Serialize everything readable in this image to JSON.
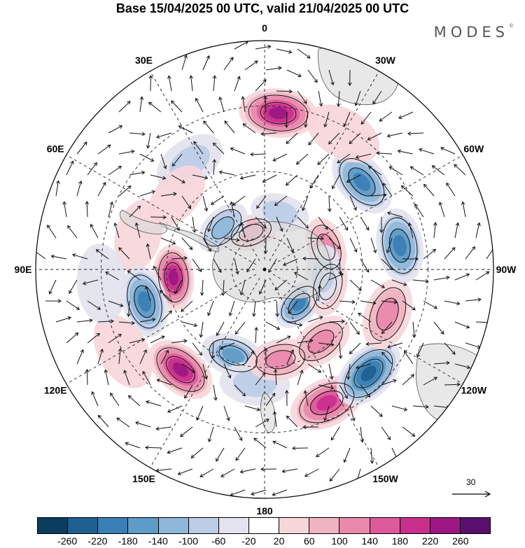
{
  "title": "Base 15/04/2025 00 UTC, valid 21/04/2025 00 UTC",
  "brand": "MODES",
  "brand_mark": "©",
  "map": {
    "projection": "south-polar-stereographic",
    "field": "geopotential-height-anomaly",
    "longitude_labels": [
      {
        "text": "0",
        "lon": 0
      },
      {
        "text": "30E",
        "lon": 30
      },
      {
        "text": "60E",
        "lon": 60
      },
      {
        "text": "90E",
        "lon": 90
      },
      {
        "text": "120E",
        "lon": 120
      },
      {
        "text": "150E",
        "lon": 150
      },
      {
        "text": "180",
        "lon": 180
      },
      {
        "text": "150W",
        "lon": -150
      },
      {
        "text": "120W",
        "lon": -120
      },
      {
        "text": "90W",
        "lon": -90
      },
      {
        "text": "60W",
        "lon": -60
      },
      {
        "text": "30W",
        "lon": -30
      }
    ],
    "anomalies": [
      {
        "lon": -5,
        "lat": -42,
        "value": 240
      },
      {
        "lon": -48,
        "lat": -50,
        "value": -200
      },
      {
        "lon": 35,
        "lat": -50,
        "value": -90
      },
      {
        "lon": 20,
        "lat": -78,
        "value": 110
      },
      {
        "lon": -15,
        "lat": -72,
        "value": -70
      },
      {
        "lon": 50,
        "lat": -55,
        "value": 60
      },
      {
        "lon": 75,
        "lat": -50,
        "value": 60
      },
      {
        "lon": 45,
        "lat": -72,
        "value": -120
      },
      {
        "lon": 95,
        "lat": -62,
        "value": 230
      },
      {
        "lon": 105,
        "lat": -52,
        "value": -200
      },
      {
        "lon": 140,
        "lat": -50,
        "value": 230
      },
      {
        "lon": 160,
        "lat": -62,
        "value": -180
      },
      {
        "lon": 175,
        "lat": -55,
        "value": -80
      },
      {
        "lon": -170,
        "lat": -62,
        "value": 120
      },
      {
        "lon": -155,
        "lat": -45,
        "value": 200
      },
      {
        "lon": -142,
        "lat": -62,
        "value": 110
      },
      {
        "lon": -135,
        "lat": -45,
        "value": -230
      },
      {
        "lon": -135,
        "lat": -75,
        "value": -200
      },
      {
        "lon": -110,
        "lat": -50,
        "value": 130
      },
      {
        "lon": -105,
        "lat": -70,
        "value": 100
      },
      {
        "lon": -80,
        "lat": -48,
        "value": -200
      },
      {
        "lon": -70,
        "lat": -70,
        "value": 110
      },
      {
        "lon": -95,
        "lat": -72,
        "value": -70
      },
      {
        "lon": 120,
        "lat": -40,
        "value": 40
      },
      {
        "lon": 95,
        "lat": -40,
        "value": -50
      },
      {
        "lon": -30,
        "lat": -42,
        "value": 40
      }
    ]
  },
  "colorbar": {
    "colors": [
      "#0b3d5e",
      "#1f5f8f",
      "#3a7fb5",
      "#5e9bc8",
      "#8fb7da",
      "#bccde6",
      "#e3e3ef",
      "#ffffff",
      "#f7d6da",
      "#f0b3c1",
      "#e989ab",
      "#dd5b9b",
      "#c92f8c",
      "#9c1781",
      "#5a0f6e"
    ],
    "labels": [
      "-260",
      "-220",
      "-180",
      "-140",
      "-100",
      "-60",
      "-20",
      "20",
      "60",
      "100",
      "140",
      "180",
      "220",
      "260"
    ]
  },
  "reference_vector": {
    "label": "30"
  }
}
